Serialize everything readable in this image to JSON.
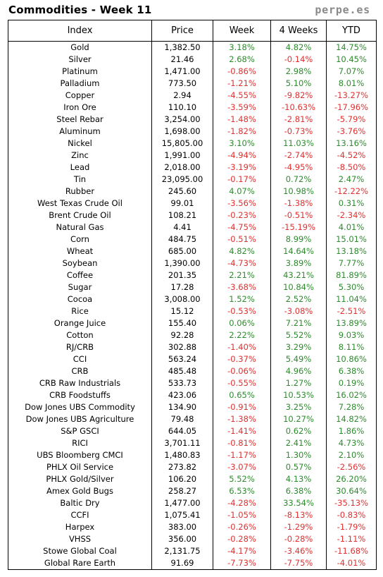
{
  "header": {
    "title": "Commodities - Week 11",
    "site": "perpe.es"
  },
  "columns": [
    "Index",
    "Price",
    "Week",
    "4 Weeks",
    "YTD"
  ],
  "rows": [
    [
      "Gold",
      "1,382.50",
      "3.18%",
      "4.82%",
      "14.75%"
    ],
    [
      "Silver",
      "21.46",
      "2.68%",
      "-0.14%",
      "10.45%"
    ],
    [
      "Platinum",
      "1,471.00",
      "-0.86%",
      "2.98%",
      "7.07%"
    ],
    [
      "Palladium",
      "773.50",
      "-1.21%",
      "5.10%",
      "8.01%"
    ],
    [
      "Copper",
      "2.94",
      "-4.55%",
      "-9.82%",
      "-13.27%"
    ],
    [
      "Iron Ore",
      "110.10",
      "-3.59%",
      "-10.63%",
      "-17.96%"
    ],
    [
      "Steel Rebar",
      "3,254.00",
      "-1.48%",
      "-2.81%",
      "-5.79%"
    ],
    [
      "Aluminum",
      "1,698.00",
      "-1.82%",
      "-0.73%",
      "-3.76%"
    ],
    [
      "Nickel",
      "15,805.00",
      "3.10%",
      "11.03%",
      "13.16%"
    ],
    [
      "Zinc",
      "1,991.00",
      "-4.94%",
      "-2.74%",
      "-4.52%"
    ],
    [
      "Lead",
      "2,018.00",
      "-3.19%",
      "-4.95%",
      "-8.50%"
    ],
    [
      "Tin",
      "23,095.00",
      "-0.17%",
      "0.72%",
      "2.47%"
    ],
    [
      "Rubber",
      "245.60",
      "4.07%",
      "10.98%",
      "-12.22%"
    ],
    [
      "West Texas Crude Oil",
      "99.01",
      "-3.56%",
      "-1.38%",
      "0.31%"
    ],
    [
      "Brent Crude Oil",
      "108.21",
      "-0.23%",
      "-0.51%",
      "-2.34%"
    ],
    [
      "Natural Gas",
      "4.41",
      "-4.75%",
      "-15.19%",
      "4.01%"
    ],
    [
      "Corn",
      "484.75",
      "-0.51%",
      "8.99%",
      "15.01%"
    ],
    [
      "Wheat",
      "685.00",
      "4.82%",
      "14.64%",
      "13.18%"
    ],
    [
      "Soybean",
      "1,390.00",
      "-4.73%",
      "3.89%",
      "7.77%"
    ],
    [
      "Coffee",
      "201.35",
      "2.21%",
      "43.21%",
      "81.89%"
    ],
    [
      "Sugar",
      "17.28",
      "-3.68%",
      "10.84%",
      "5.30%"
    ],
    [
      "Cocoa",
      "3,008.00",
      "1.52%",
      "2.52%",
      "11.04%"
    ],
    [
      "Rice",
      "15.12",
      "-0.53%",
      "-3.08%",
      "-2.51%"
    ],
    [
      "Orange Juice",
      "155.40",
      "0.06%",
      "7.21%",
      "13.89%"
    ],
    [
      "Cotton",
      "92.28",
      "2.22%",
      "5.52%",
      "9.03%"
    ],
    [
      "RJ/CRB",
      "302.88",
      "-1.40%",
      "3.29%",
      "8.11%"
    ],
    [
      "CCI",
      "563.24",
      "-0.37%",
      "5.49%",
      "10.86%"
    ],
    [
      "CRB",
      "485.48",
      "-0.06%",
      "4.96%",
      "6.38%"
    ],
    [
      "CRB Raw Industrials",
      "533.73",
      "-0.55%",
      "1.27%",
      "0.19%"
    ],
    [
      "CRB Foodstuffs",
      "423.06",
      "0.65%",
      "10.53%",
      "16.02%"
    ],
    [
      "Dow Jones UBS Commodity",
      "134.90",
      "-0.91%",
      "3.25%",
      "7.28%"
    ],
    [
      "Dow Jones UBS Agriculture",
      "79.48",
      "-1.38%",
      "10.27%",
      "14.82%"
    ],
    [
      "S&P GSCI",
      "644.05",
      "-1.41%",
      "0.62%",
      "1.86%"
    ],
    [
      "RICI",
      "3,701.11",
      "-0.81%",
      "2.41%",
      "4.73%"
    ],
    [
      "UBS Bloomberg CMCI",
      "1,480.83",
      "-1.17%",
      "1.30%",
      "2.10%"
    ],
    [
      "PHLX Oil Service",
      "273.82",
      "-3.07%",
      "0.57%",
      "-2.56%"
    ],
    [
      "PHLX Gold/Silver",
      "106.20",
      "5.52%",
      "4.13%",
      "26.20%"
    ],
    [
      "Amex Gold Bugs",
      "258.27",
      "6.53%",
      "6.38%",
      "30.64%"
    ],
    [
      "Baltic Dry",
      "1,477.00",
      "-4.28%",
      "33.54%",
      "-35.13%"
    ],
    [
      "CCFI",
      "1,075.41",
      "-1.05%",
      "-8.13%",
      "-0.83%"
    ],
    [
      "Harpex",
      "383.00",
      "-0.26%",
      "-1.29%",
      "-1.79%"
    ],
    [
      "VHSS",
      "356.00",
      "-0.28%",
      "-0.28%",
      "-1.11%"
    ],
    [
      "Stowe Global Coal",
      "2,131.75",
      "-4.17%",
      "-3.46%",
      "-11.68%"
    ],
    [
      "Global Rare Earth",
      "91.69",
      "-7.73%",
      "-7.75%",
      "-4.01%"
    ]
  ],
  "colors": {
    "positive": "#2e8b2e",
    "negative": "#e03030"
  }
}
